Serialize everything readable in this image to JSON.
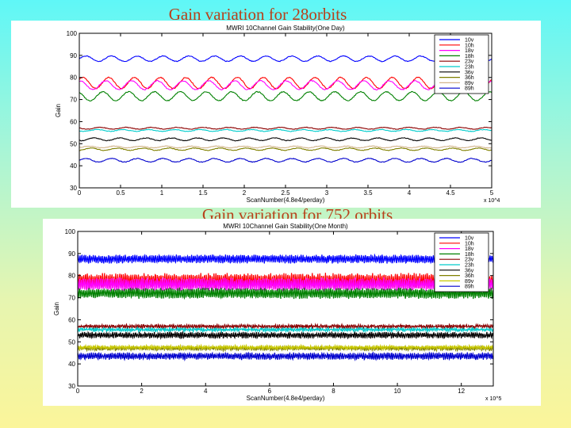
{
  "slide": {
    "title1": "Gain variation for 28orbits",
    "title2": "Gain variation for 752 orbits"
  },
  "chart_data": [
    {
      "type": "line",
      "title": "MWRI 10Channel Gain Stability(One Day)",
      "xlabel": "ScanNumber(4.8e4/perday)",
      "ylabel": "Gain",
      "xlim": [
        0,
        5
      ],
      "ylim": [
        30,
        100
      ],
      "x_multiplier": "x 10^4",
      "xticks": [
        0,
        0.5,
        1,
        1.5,
        2,
        2.5,
        3,
        3.5,
        4,
        4.5,
        5
      ],
      "yticks": [
        30,
        40,
        50,
        60,
        70,
        80,
        90,
        100
      ],
      "legend_position": "top-right",
      "grid": false,
      "series": [
        {
          "name": "10v",
          "color": "#0000ff",
          "mean": 88.5,
          "amplitude": 1.2
        },
        {
          "name": "10h",
          "color": "#ff0000",
          "mean": 77.5,
          "amplitude": 2.5
        },
        {
          "name": "18v",
          "color": "#ff00ff",
          "mean": 76.5,
          "amplitude": 2.0
        },
        {
          "name": "18h",
          "color": "#008000",
          "mean": 71.5,
          "amplitude": 2.0
        },
        {
          "name": "23v",
          "color": "#8b0000",
          "mean": 57.0,
          "amplitude": 0.4
        },
        {
          "name": "23h",
          "color": "#00cccc",
          "mean": 56.0,
          "amplitude": 0.4
        },
        {
          "name": "36v",
          "color": "#000000",
          "mean": 52.0,
          "amplitude": 0.6
        },
        {
          "name": "36h",
          "color": "#808000",
          "mean": 47.5,
          "amplitude": 0.5
        },
        {
          "name": "89v",
          "color": "#d2b48c",
          "mean": 48.5,
          "amplitude": 0.4
        },
        {
          "name": "89h",
          "color": "#0000cd",
          "mean": 42.5,
          "amplitude": 0.8
        }
      ]
    },
    {
      "type": "line",
      "title": "MWRI 10Channel Gain Stability(One Month)",
      "xlabel": "ScanNumber(4.8e4/perday)",
      "ylabel": "Gain",
      "xlim": [
        0,
        13
      ],
      "ylim": [
        30,
        100
      ],
      "x_multiplier": "x 10^5",
      "xticks": [
        0,
        2,
        4,
        6,
        8,
        10,
        12
      ],
      "yticks": [
        30,
        40,
        50,
        60,
        70,
        80,
        90,
        100
      ],
      "legend_position": "top-right",
      "grid": false,
      "series": [
        {
          "name": "10v",
          "color": "#0000ff",
          "mean": 87.5,
          "amplitude": 1.5
        },
        {
          "name": "10h",
          "color": "#ff0000",
          "mean": 77.5,
          "amplitude": 3.0
        },
        {
          "name": "18v",
          "color": "#ff00ff",
          "mean": 76.0,
          "amplitude": 2.5
        },
        {
          "name": "18h",
          "color": "#008000",
          "mean": 72.0,
          "amplitude": 2.0
        },
        {
          "name": "23v",
          "color": "#8b0000",
          "mean": 57.0,
          "amplitude": 0.5
        },
        {
          "name": "23h",
          "color": "#00cccc",
          "mean": 55.5,
          "amplitude": 0.5
        },
        {
          "name": "36v",
          "color": "#000000",
          "mean": 53.0,
          "amplitude": 1.0
        },
        {
          "name": "36h",
          "color": "#808000",
          "mean": 47.0,
          "amplitude": 0.6
        },
        {
          "name": "89v",
          "color": "#c8c800",
          "mean": 47.5,
          "amplitude": 0.5
        },
        {
          "name": "89h",
          "color": "#0000cd",
          "mean": 43.5,
          "amplitude": 1.2
        }
      ]
    }
  ]
}
